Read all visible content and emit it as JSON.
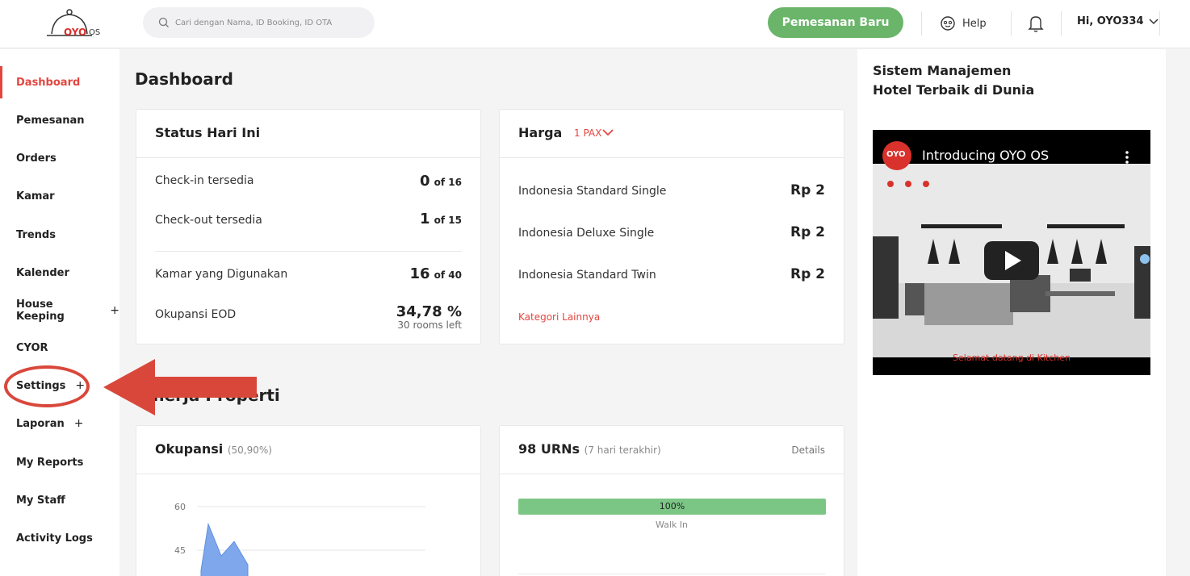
{
  "header": {
    "logo_text": "OYO",
    "logo_suffix": "OS",
    "search_placeholder": "Cari dengan Nama, ID Booking, ID OTA",
    "new_booking_label": "Pemesanan Baru",
    "help_label": "Help",
    "user_label": "Hi, OYO334"
  },
  "sidebar": {
    "items": [
      {
        "label": "Dashboard",
        "plus": ""
      },
      {
        "label": "Pemesanan",
        "plus": ""
      },
      {
        "label": "Orders",
        "plus": ""
      },
      {
        "label": "Kamar",
        "plus": ""
      },
      {
        "label": "Trends",
        "plus": ""
      },
      {
        "label": "Kalender",
        "plus": ""
      },
      {
        "label": "House Keeping",
        "plus": "+"
      },
      {
        "label": "CYOR",
        "plus": ""
      },
      {
        "label": "Settings",
        "plus": "+"
      },
      {
        "label": "Laporan",
        "plus": "+"
      },
      {
        "label": "My Reports",
        "plus": ""
      },
      {
        "label": "My Staff",
        "plus": ""
      },
      {
        "label": "Activity Logs",
        "plus": ""
      }
    ]
  },
  "main": {
    "title": "Dashboard",
    "status": {
      "title": "Status Hari Ini",
      "rows": [
        {
          "label": "Check-in tersedia",
          "value": "0",
          "of": "of 16"
        },
        {
          "label": "Check-out tersedia",
          "value": "1",
          "of": "of 15"
        },
        {
          "label": "Kamar yang Digunakan",
          "value": "16",
          "of": "of 40"
        },
        {
          "label": "Okupansi EOD",
          "value": "34,78 %",
          "of": "30 rooms left"
        }
      ]
    },
    "harga": {
      "title": "Harga",
      "pax": "1 PAX",
      "rows": [
        {
          "label": "Indonesia Standard Single",
          "value": "Rp 2"
        },
        {
          "label": "Indonesia Deluxe Single",
          "value": "Rp 2"
        },
        {
          "label": "Indonesia Standard Twin",
          "value": "Rp 2"
        }
      ],
      "more": "Kategori Lainnya"
    },
    "section_title": "Kinerja Properti",
    "okupansi": {
      "title": "Okupansi",
      "sub": "(50,90%)"
    },
    "urns": {
      "title": "98 URNs",
      "sub": "(7 hari terakhir)",
      "details": "Details",
      "progress_label": "100%",
      "progress_value": 1.0,
      "walkin_label": "Walk In"
    }
  },
  "right": {
    "promo_line1": "Sistem Manajemen",
    "promo_line2": "Hotel Terbaik di Dunia",
    "video_logo": "OYO",
    "video_title": "Introducing OYO OS",
    "video_caption": "Selamat datang di Kitchen"
  },
  "chart_data": {
    "type": "area",
    "title": "",
    "xlabel": "",
    "ylabel": "",
    "y_ticks": [
      60,
      45
    ],
    "series": [
      {
        "values": [
          38,
          54,
          43,
          48,
          40
        ]
      }
    ],
    "colors": {
      "fill": "#7fa8ec",
      "stroke": "#5f8fe0"
    }
  },
  "colors": {
    "accent": "#e3463f",
    "green": "#6ab56a",
    "progress": "#7bc684"
  }
}
